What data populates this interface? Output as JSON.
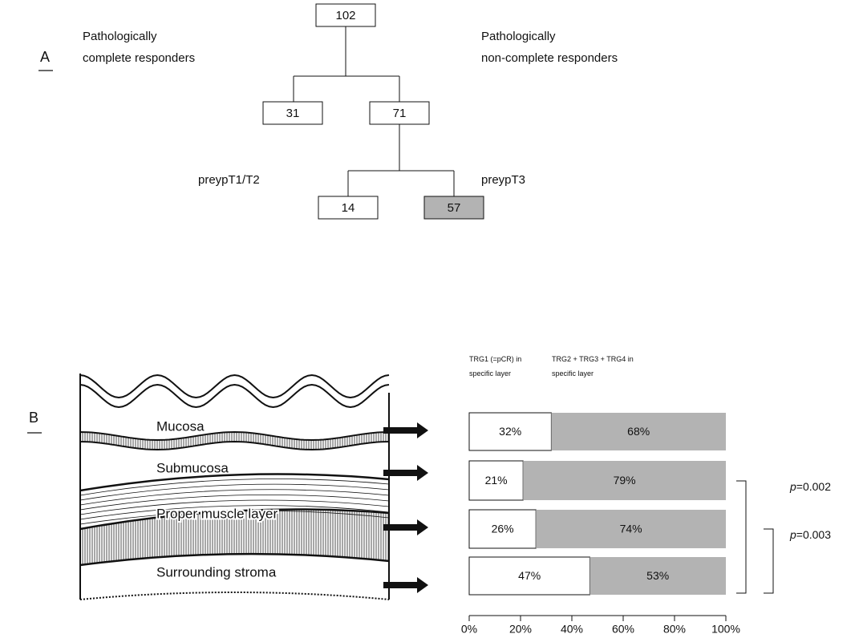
{
  "panel_a": {
    "label": "A",
    "nodes": [
      102,
      31,
      71,
      14,
      57
    ],
    "complete_label": [
      "Pathologically",
      "complete responders"
    ],
    "non_complete_label": [
      "Pathologically",
      "non-complete responders"
    ],
    "left_branch": "preypT1/T2",
    "right_branch": "preypT3"
  },
  "panel_b": {
    "label": "B"
  },
  "chart_data": {
    "type": "bar",
    "orientation": "horizontal",
    "stacked": true,
    "categories": [
      "Mucosa",
      "Submucosa",
      "Proper muscle layer",
      "Surrounding stroma"
    ],
    "series": [
      {
        "name": "TRG1 (=pCR) in specific layer",
        "color": "#ffffff",
        "values": [
          32,
          21,
          26,
          47
        ],
        "value_labels": [
          "32%",
          "21%",
          "26%",
          "47%"
        ]
      },
      {
        "name": "TRG2 + TRG3 + TRG4 in specific layer",
        "color": "#b3b3b3",
        "values": [
          68,
          79,
          74,
          53
        ],
        "value_labels": [
          "68%",
          "79%",
          "74%",
          "53%"
        ]
      }
    ],
    "xlim": [
      0,
      100
    ],
    "xticks": [
      {
        "value": 0,
        "label": "0%"
      },
      {
        "value": 20,
        "label": "20%"
      },
      {
        "value": 40,
        "label": "40%"
      },
      {
        "value": 60,
        "label": "60%"
      },
      {
        "value": 80,
        "label": "80%"
      },
      {
        "value": 100,
        "label": "100%"
      }
    ],
    "annotations": [
      "p=0.002",
      "p=0.003"
    ]
  }
}
